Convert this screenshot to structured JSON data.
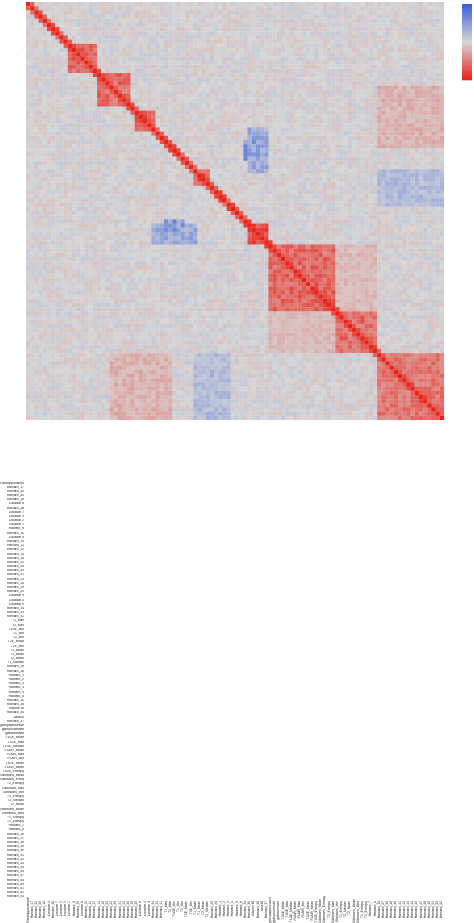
{
  "chart_data": {
    "type": "heatmap",
    "title": "",
    "xlabel": "",
    "ylabel": "",
    "n": 100,
    "row_labels": [
      "Parahippocampal",
      "Harvard_17",
      "Harvard_32",
      "Harvard_50",
      "Harvard_18",
      "Location 8",
      "Harvard_46",
      "Location 7",
      "Location 3",
      "Location 2",
      "Location 1",
      "Harvard_9",
      "Harvard_10",
      "Location 6",
      "Harvard_13",
      "Harvard_11",
      "Harvard_12",
      "Harvard_14",
      "Harvard_15",
      "Harvard_22",
      "Harvard_24",
      "Harvard_25",
      "Harvard_21",
      "Harvard_23",
      "Harvard_26",
      "Harvard_19",
      "Harvard_20",
      "Location 9",
      "Location 4",
      "Location 5",
      "Harvard_34",
      "Harvard_33",
      "Harvard_31",
      "T1_Max",
      "T2_Max",
      "T1GE_Min",
      "T1_Min",
      "T2_Min",
      "T2E_Mode",
      "T2E_Min",
      "T1_Mode",
      "T1_Mean",
      "T2_Mean",
      "T1_Median",
      "Harvard_29",
      "Harvard_28",
      "Harvard_1",
      "Harvard_2",
      "Harvard_3",
      "Harvard_4",
      "Harvard_5",
      "Harvard_6",
      "Harvard_30",
      "Harvard_35",
      "Volume ID",
      "Harvard_36",
      "caseID",
      "Harvard_37",
      "glcmpaprocesseit",
      "gldmprocesseit",
      "gabouresseit",
      "T1GE_Mode",
      "T1GE_Max",
      "T1GE_Median",
      "FLAIR_Mode",
      "FLAIR_Max",
      "FLAIR_Min",
      "T1GE_Mean",
      "FLAIR_Mean",
      "T1GE_Entropy",
      "Gibbsons_Mean",
      "Gibbsons_Entropy",
      "T2_Entropy",
      "Gibbsons_Max",
      "Gibbsons_Min",
      "T1_Entropy",
      "T2_Median",
      "T2_Mode",
      "Gibbsons_Mode",
      "Gibbsons_Med",
      "T1_Entropy",
      "T2_Entropy",
      "Harvard_7",
      "Harvard_8",
      "Harvard_16",
      "Harvard_27",
      "Harvard_38",
      "Harvard_39",
      "Harvard_40",
      "Harvard_41",
      "Harvard_42",
      "Harvard_43",
      "Harvard_44",
      "Harvard_45",
      "Harvard_47",
      "Harvard_48",
      "Harvard_49",
      "Harvard_51",
      "Harvard_52",
      "Harvard_53"
    ],
    "colorscale": {
      "min": -1,
      "mid": 0,
      "max": 1,
      "low_color": "#e8241a",
      "mid_color": "#d6d6d6",
      "high_color": "#3c60d8"
    },
    "note_blocks": [
      {
        "start": 10,
        "end": 16,
        "value": 0.75
      },
      {
        "start": 17,
        "end": 24,
        "value": 0.7
      },
      {
        "start": 26,
        "end": 30,
        "value": 0.78
      },
      {
        "start": 40,
        "end": 43,
        "value": 0.85
      },
      {
        "start": 53,
        "end": 57,
        "value": 0.9
      },
      {
        "start": 58,
        "end": 73,
        "value": 0.72
      },
      {
        "start": 74,
        "end": 83,
        "value": 0.7
      },
      {
        "start": 84,
        "end": 99,
        "value": 0.62
      }
    ],
    "cross_regions": [
      {
        "rows": [
          53,
          57
        ],
        "cols": [
          30,
          40
        ],
        "value": -0.45
      },
      {
        "rows": [
          30,
          40
        ],
        "cols": [
          53,
          57
        ],
        "value": -0.45
      },
      {
        "rows": [
          33,
          37
        ],
        "cols": [
          52,
          55
        ],
        "value": -0.6
      },
      {
        "rows": [
          52,
          55
        ],
        "cols": [
          33,
          37
        ],
        "value": -0.6
      },
      {
        "rows": [
          84,
          99
        ],
        "cols": [
          20,
          34
        ],
        "value": 0.25
      },
      {
        "rows": [
          20,
          34
        ],
        "cols": [
          84,
          99
        ],
        "value": 0.25
      },
      {
        "rows": [
          40,
          48
        ],
        "cols": [
          84,
          99
        ],
        "value": -0.3
      },
      {
        "rows": [
          84,
          99
        ],
        "cols": [
          40,
          48
        ],
        "value": -0.3
      },
      {
        "rows": [
          58,
          73
        ],
        "cols": [
          74,
          83
        ],
        "value": 0.2
      },
      {
        "rows": [
          74,
          83
        ],
        "cols": [
          58,
          73
        ],
        "value": 0.2
      }
    ]
  }
}
